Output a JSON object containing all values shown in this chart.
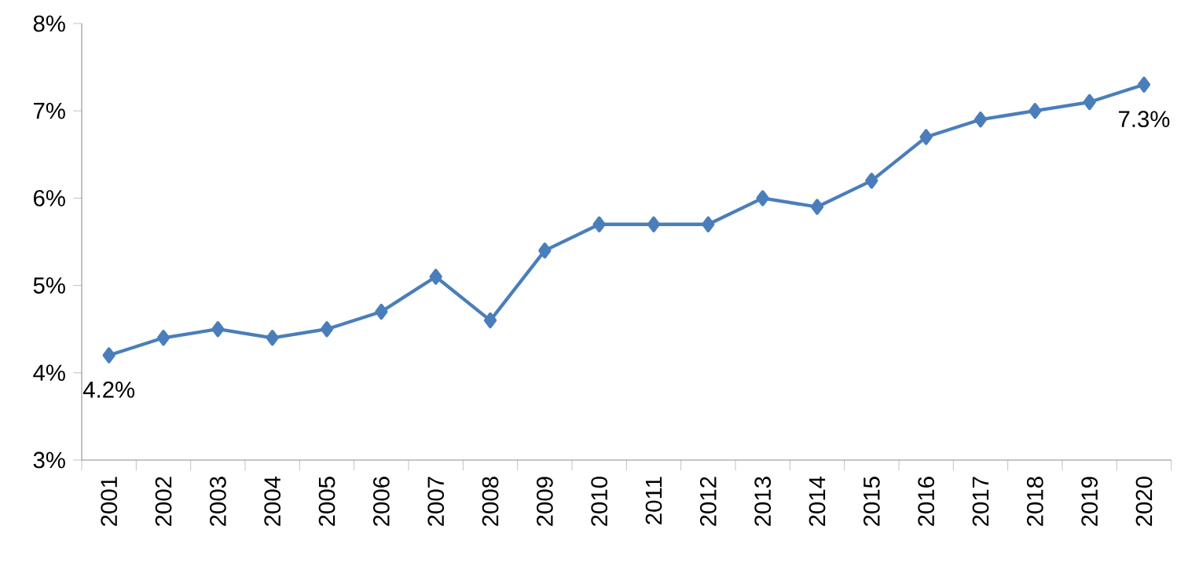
{
  "chart_data": {
    "type": "line",
    "categories": [
      "2001",
      "2002",
      "2003",
      "2004",
      "2005",
      "2006",
      "2007",
      "2008",
      "2009",
      "2010",
      "2011",
      "2012",
      "2013",
      "2014",
      "2015",
      "2016",
      "2017",
      "2018",
      "2019",
      "2020"
    ],
    "series": [
      {
        "color": "#4a7ebb",
        "values": [
          4.2,
          4.4,
          4.5,
          4.4,
          4.5,
          4.7,
          5.1,
          4.6,
          5.4,
          5.7,
          5.7,
          5.7,
          6.0,
          5.9,
          6.2,
          6.7,
          6.9,
          7.0,
          7.1,
          7.3
        ]
      }
    ],
    "ylim": [
      3,
      8
    ],
    "yticks": [
      {
        "value": 3,
        "label": "3%"
      },
      {
        "value": 4,
        "label": "4%"
      },
      {
        "value": 5,
        "label": "5%"
      },
      {
        "value": 6,
        "label": "6%"
      },
      {
        "value": 7,
        "label": "7%"
      },
      {
        "value": 8,
        "label": "8%"
      }
    ],
    "annotations": [
      {
        "text": "4.2%",
        "x": "2001",
        "y": 4.2
      },
      {
        "text": "7.3%",
        "x": "2020",
        "y": 7.3
      }
    ],
    "marker": "diamond",
    "line_style": "solid",
    "grid": false
  }
}
